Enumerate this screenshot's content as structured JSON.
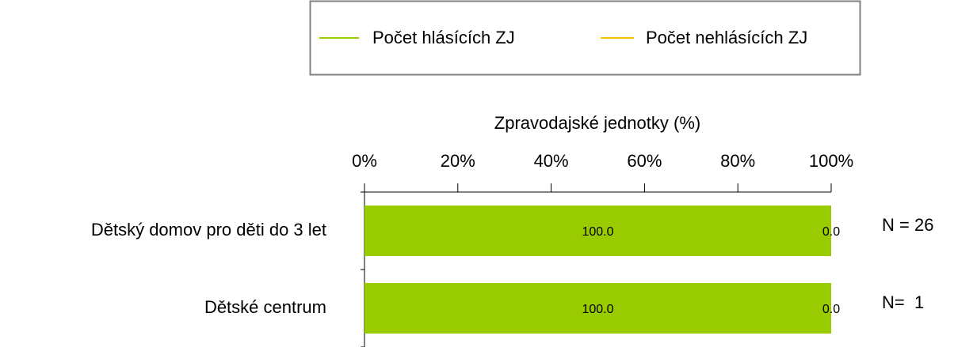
{
  "chart_data": {
    "type": "stacked-barh",
    "x_label": "Zpravodajské jednotky (%)",
    "categories": [
      "Dětský domov pro děti do 3 let",
      "Dětské centrum"
    ],
    "series": [
      {
        "name": "Počet hlásících ZJ",
        "color": "#99cc00",
        "values": [
          100,
          100
        ],
        "value_labels": [
          "100.0",
          "100.0"
        ]
      },
      {
        "name": "Počet nehlásících ZJ",
        "color": "#ffc000",
        "values": [
          0,
          0
        ],
        "value_labels": [
          "0.0",
          "0.0"
        ]
      }
    ],
    "xlim": [
      0,
      100
    ],
    "xticks": [
      {
        "value": 0,
        "label": "0%"
      },
      {
        "value": 20,
        "label": "20%"
      },
      {
        "value": 40,
        "label": "40%"
      },
      {
        "value": 60,
        "label": "60%"
      },
      {
        "value": 80,
        "label": "80%"
      },
      {
        "value": 100,
        "label": "100%"
      }
    ],
    "annotations": [
      "N = 26",
      "N=  1"
    ],
    "legend": "top"
  }
}
